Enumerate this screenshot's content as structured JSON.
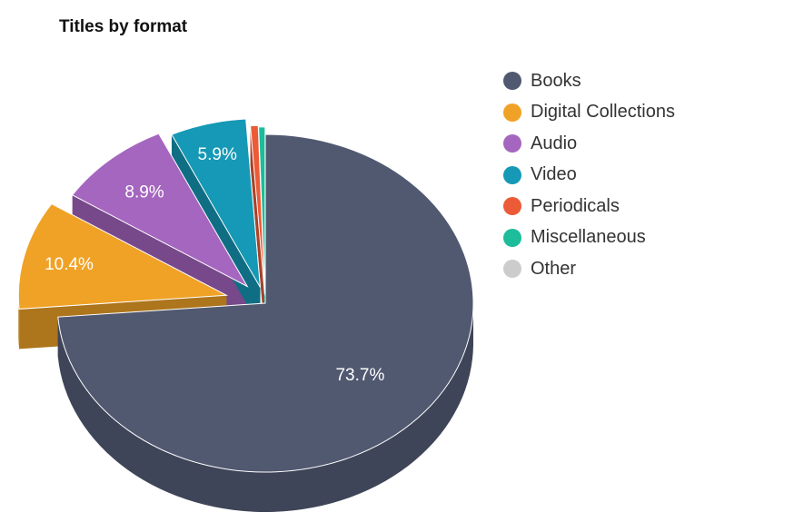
{
  "chart_data": {
    "type": "pie",
    "title": "Titles by format",
    "categories": [
      "Books",
      "Digital Collections",
      "Audio",
      "Video",
      "Periodicals",
      "Miscellaneous",
      "Other"
    ],
    "values": [
      73.7,
      10.4,
      8.9,
      5.9,
      0.6,
      0.5,
      0.0
    ],
    "data_labels": [
      "73.7%",
      "10.4%",
      "8.9%",
      "5.9%",
      "",
      "",
      ""
    ],
    "colors": [
      "#515971",
      "#f0a227",
      "#a566bf",
      "#1599b6",
      "#ec5b37",
      "#1dbc9a",
      "#cccccc"
    ],
    "style": "3d-exploded",
    "legend_position": "right"
  }
}
